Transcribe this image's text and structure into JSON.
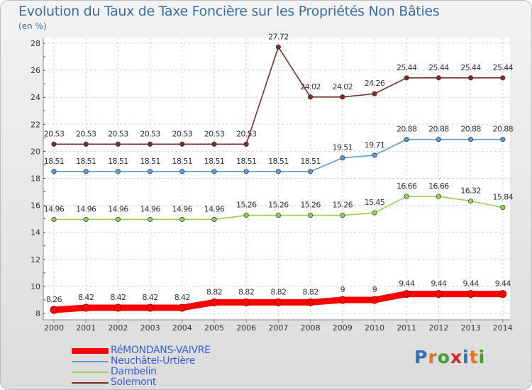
{
  "title": "Evolution du Taux de Taxe Foncière sur les Propriétés Non Bâties",
  "unit_label": "(en %)",
  "logo_text": "Proxiti",
  "chart_data": {
    "type": "line",
    "x": [
      "2000",
      "2001",
      "2002",
      "2003",
      "2004",
      "2005",
      "2006",
      "2007",
      "2008",
      "2009",
      "2010",
      "2011",
      "2012",
      "2013",
      "2014"
    ],
    "ylim": [
      8,
      28
    ],
    "yticks": [
      "8",
      "10",
      "12",
      "14",
      "16",
      "18",
      "20",
      "22",
      "24",
      "26",
      "28"
    ],
    "grid": true,
    "legend_position": "bottom-left",
    "series": [
      {
        "name": "RéMONDANS-VAIVRE",
        "color": "#ff0000",
        "values": [
          8.26,
          8.42,
          8.42,
          8.42,
          8.42,
          8.82,
          8.82,
          8.82,
          8.82,
          9,
          9,
          9.44,
          9.44,
          9.44,
          9.44
        ],
        "labels": [
          "8.26",
          "8.42",
          "8.42",
          "8.42",
          "8.42",
          "8.82",
          "8.82",
          "8.82",
          "8.82",
          "9",
          "9",
          "9.44",
          "9.44",
          "9.44",
          "9.44"
        ]
      },
      {
        "name": "Neuchâtel-Urtière",
        "color": "#5b9bd5",
        "values": [
          18.51,
          18.51,
          18.51,
          18.51,
          18.51,
          18.51,
          18.51,
          18.51,
          18.51,
          19.51,
          19.71,
          20.88,
          20.88,
          20.88,
          20.88
        ],
        "labels": [
          "18.51",
          "18.51",
          "18.51",
          "18.51",
          "18.51",
          "18.51",
          "18.51",
          "18.51",
          "18.51",
          "19.51",
          "19.71",
          "20.88",
          "20.88",
          "20.88",
          "20.88"
        ]
      },
      {
        "name": "Dambelin",
        "color": "#92d050",
        "values": [
          14.96,
          14.96,
          14.96,
          14.96,
          14.96,
          14.96,
          15.26,
          15.26,
          15.26,
          15.26,
          15.45,
          16.66,
          16.66,
          16.32,
          15.84
        ],
        "labels": [
          "14.96",
          "14.96",
          "14.96",
          "14.96",
          "14.96",
          "14.96",
          "15.26",
          "15.26",
          "15.26",
          "15.26",
          "15.45",
          "16.66",
          "16.66",
          "16.32",
          "15.84"
        ]
      },
      {
        "name": "Solemont",
        "color": "#7b2c2c",
        "values": [
          20.53,
          20.53,
          20.53,
          20.53,
          20.53,
          20.53,
          20.53,
          27.72,
          24.02,
          24.02,
          24.26,
          25.44,
          25.44,
          25.44,
          25.44
        ],
        "labels": [
          "20.53",
          "20.53",
          "20.53",
          "20.53",
          "20.53",
          "20.53",
          "20.53",
          "27.72",
          "24.02",
          "24.02",
          "24.26",
          "25.44",
          "25.44",
          "25.44",
          "25.44"
        ]
      }
    ]
  }
}
